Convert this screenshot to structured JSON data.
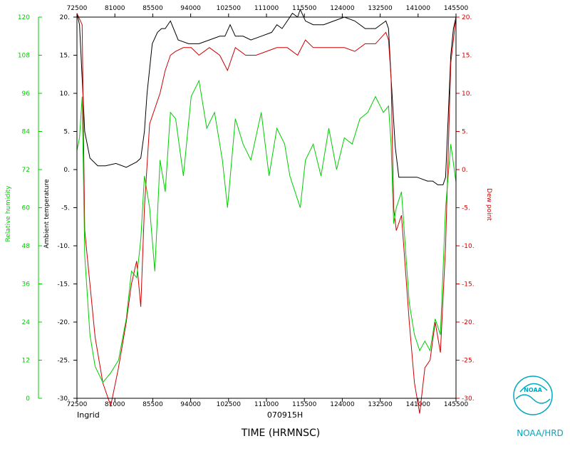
{
  "chart_data": {
    "type": "line",
    "xlabel": "TIME (HRMNSC)",
    "date_label": "070915H",
    "storm_label": "Ingrid",
    "x_ticks": [
      "72500",
      "81000",
      "85500",
      "94000",
      "102500",
      "111000",
      "115500",
      "124000",
      "132500",
      "141000",
      "145500"
    ],
    "xlim": [
      72500,
      145500
    ],
    "axes": {
      "temperature": {
        "label": "Ambient temperature",
        "ylim": [
          -30,
          20
        ],
        "ticks": [
          "20.",
          "15.",
          "10.",
          "5.",
          "0.",
          "-5.",
          "-10.",
          "-15.",
          "-20.",
          "-25.",
          "-30."
        ],
        "color": "#000000"
      },
      "dewpoint": {
        "label": "Dew point",
        "ylim": [
          -30,
          20
        ],
        "ticks": [
          "20.",
          "15.",
          "10.",
          "5.",
          "0.",
          "-5.",
          "-10.",
          "-15.",
          "-20.",
          "-25.",
          "-30."
        ],
        "color": "#cc0000"
      },
      "humidity": {
        "label": "Relative humidity",
        "ylim": [
          0,
          120
        ],
        "ticks": [
          "120",
          "108",
          "96",
          "84",
          "72",
          "60",
          "48",
          "36",
          "24",
          "12",
          "0"
        ],
        "color": "#00cc00"
      }
    },
    "series": [
      {
        "name": "Ambient temperature",
        "axis": "temperature",
        "color": "#000000",
        "x": [
          72500,
          73000,
          73500,
          74000,
          75000,
          76500,
          78000,
          80000,
          82000,
          84000,
          84800,
          85500,
          86000,
          87000,
          88000,
          88800,
          89500,
          90500,
          92000,
          94000,
          96000,
          98000,
          100000,
          101000,
          102000,
          103000,
          104500,
          106000,
          108000,
          110000,
          111000,
          112000,
          113000,
          114000,
          115000,
          115500,
          116500,
          118000,
          120000,
          122000,
          124000,
          126000,
          128000,
          130000,
          132000,
          132500,
          133000,
          133800,
          134500,
          136000,
          138000,
          140000,
          141000,
          142000,
          143000,
          143500,
          144000,
          144500,
          145000,
          145500
        ],
        "y": [
          20.5,
          19,
          12,
          5,
          1.5,
          0.5,
          0.5,
          0.8,
          0.3,
          1,
          1.5,
          5,
          10,
          16.5,
          18,
          18.5,
          18.5,
          19.5,
          17,
          16.5,
          16.5,
          17,
          17.5,
          17.5,
          19,
          17.5,
          17.5,
          17,
          17.5,
          18,
          19,
          18.5,
          19.5,
          20.5,
          20,
          21,
          19.5,
          19,
          19,
          19.5,
          20,
          19.5,
          18.5,
          18.5,
          19.5,
          18.5,
          12,
          3,
          -1,
          -1,
          -1,
          -1.5,
          -1.5,
          -2,
          -2,
          -1,
          7,
          15,
          18.5,
          20
        ]
      },
      {
        "name": "Dew point",
        "axis": "dewpoint",
        "color": "#cc0000",
        "x": [
          72500,
          73500,
          74000,
          75000,
          76000,
          77500,
          79000,
          80500,
          82000,
          83000,
          84000,
          84800,
          85500,
          86500,
          87500,
          88500,
          89500,
          90500,
          91500,
          93000,
          94500,
          96000,
          98000,
          100000,
          101500,
          103000,
          105000,
          107000,
          109000,
          111000,
          113000,
          115000,
          116500,
          118000,
          120000,
          122000,
          124000,
          126000,
          128000,
          130000,
          132000,
          132500,
          133000,
          133500,
          134000,
          135000,
          136500,
          137500,
          138500,
          139500,
          140500,
          141500,
          142500,
          143500,
          144500,
          145500
        ],
        "y": [
          20.5,
          19,
          -8,
          -15,
          -22,
          -28,
          -31,
          -26,
          -20,
          -15,
          -12,
          -18,
          -5,
          6,
          8,
          10,
          13,
          15,
          15.5,
          16,
          16,
          15,
          16,
          15,
          13,
          16,
          15,
          15,
          15.5,
          16,
          16,
          15,
          17,
          16,
          16,
          16,
          16,
          15.5,
          16.5,
          16.5,
          18,
          17,
          12,
          -5,
          -8,
          -6,
          -20,
          -28,
          -32,
          -26,
          -25,
          -20,
          -24,
          -10,
          14,
          20
        ]
      },
      {
        "name": "Relative humidity",
        "axis": "humidity",
        "color": "#00cc00",
        "x": [
          72500,
          73000,
          73500,
          74000,
          75000,
          76000,
          77500,
          79000,
          80500,
          82000,
          83000,
          84000,
          84800,
          85500,
          86500,
          87500,
          88500,
          89500,
          90500,
          91500,
          93000,
          94500,
          96000,
          97500,
          99000,
          100500,
          101500,
          103000,
          104500,
          106000,
          108000,
          109500,
          111000,
          112500,
          113500,
          114500,
          115500,
          116500,
          118000,
          119500,
          121000,
          122500,
          124000,
          125500,
          127000,
          128500,
          130000,
          131500,
          132500,
          133000,
          133500,
          134000,
          135000,
          136500,
          137500,
          138500,
          139500,
          140500,
          141500,
          142500,
          143500,
          144500,
          145500
        ],
        "y": [
          78,
          82,
          95,
          45,
          20,
          10,
          5,
          8,
          12,
          25,
          40,
          38,
          50,
          70,
          60,
          40,
          75,
          65,
          90,
          88,
          70,
          95,
          100,
          85,
          90,
          75,
          60,
          88,
          80,
          75,
          90,
          70,
          85,
          80,
          70,
          65,
          60,
          75,
          80,
          70,
          85,
          72,
          82,
          80,
          88,
          90,
          95,
          90,
          92,
          80,
          55,
          60,
          65,
          30,
          20,
          15,
          18,
          15,
          25,
          20,
          60,
          80,
          68
        ]
      }
    ]
  },
  "footer": {
    "noaa_label": "NOAA/HRD",
    "logo_text": "NOAA"
  }
}
